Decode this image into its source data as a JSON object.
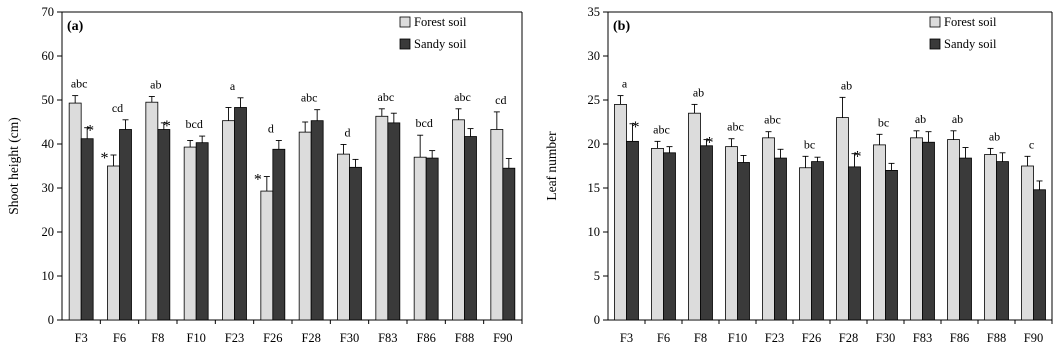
{
  "colors": {
    "forest": "#dcdcdc",
    "sandy": "#3a3a3a",
    "axis": "#000000"
  },
  "chart_data": [
    {
      "type": "bar",
      "panel_label": "(a)",
      "ylabel": "Shoot height (cm)",
      "xlabel": "",
      "ylim": [
        0,
        70
      ],
      "yticks": [
        0,
        10,
        20,
        30,
        40,
        50,
        60,
        70
      ],
      "grid": false,
      "legend_position": "top-right",
      "categories": [
        "F3",
        "F6",
        "F8",
        "F10",
        "F23",
        "F26",
        "F28",
        "F30",
        "F83",
        "F86",
        "F88",
        "F90"
      ],
      "series": [
        {
          "name": "Forest  soil",
          "values": [
            49.3,
            35.0,
            49.5,
            39.3,
            45.3,
            29.3,
            42.7,
            37.7,
            46.3,
            37.0,
            45.5,
            43.3
          ],
          "errors": [
            1.7,
            2.5,
            1.3,
            1.5,
            3.0,
            3.3,
            2.3,
            2.2,
            1.7,
            5.0,
            2.5,
            4.0
          ]
        },
        {
          "name": "Sandy soil",
          "values": [
            41.2,
            43.3,
            43.3,
            40.3,
            48.3,
            38.8,
            45.3,
            34.7,
            44.8,
            36.8,
            41.7,
            34.5
          ],
          "errors": [
            2.5,
            2.2,
            1.5,
            1.5,
            2.2,
            2.0,
            2.5,
            1.8,
            2.2,
            1.7,
            1.8,
            2.2
          ]
        }
      ],
      "sig_letters": [
        "abc",
        "cd",
        "ab",
        "bcd",
        "a",
        "d",
        "abc",
        "d",
        "abc",
        "bcd",
        "abc",
        "cd"
      ],
      "stars": [
        "*",
        "*",
        "*",
        "",
        "",
        "*",
        "",
        "",
        "",
        "",
        "",
        ""
      ]
    },
    {
      "type": "bar",
      "panel_label": "(b)",
      "ylabel": "Leaf number",
      "xlabel": "",
      "ylim": [
        0,
        35
      ],
      "yticks": [
        0,
        5,
        10,
        15,
        20,
        25,
        30,
        35
      ],
      "grid": false,
      "legend_position": "top-right",
      "categories": [
        "F3",
        "F6",
        "F8",
        "F10",
        "F23",
        "F26",
        "F28",
        "F30",
        "F83",
        "F86",
        "F88",
        "F90"
      ],
      "series": [
        {
          "name": "Forest  soil",
          "values": [
            24.5,
            19.5,
            23.5,
            19.7,
            20.7,
            17.3,
            23.0,
            19.9,
            20.7,
            20.5,
            18.8,
            17.5
          ],
          "errors": [
            1.0,
            0.8,
            1.0,
            0.9,
            0.7,
            1.3,
            2.3,
            1.2,
            0.8,
            1.0,
            0.7,
            1.1
          ]
        },
        {
          "name": "Sandy soil",
          "values": [
            20.3,
            19.0,
            19.8,
            17.9,
            18.4,
            18.0,
            17.4,
            17.0,
            20.2,
            18.4,
            18.0,
            14.8
          ],
          "errors": [
            2.0,
            0.7,
            0.7,
            0.8,
            1.0,
            0.5,
            1.5,
            0.8,
            1.2,
            1.2,
            1.0,
            1.0
          ]
        }
      ],
      "sig_letters": [
        "a",
        "abc",
        "ab",
        "abc",
        "abc",
        "bc",
        "ab",
        "bc",
        "ab",
        "ab",
        "ab",
        "c"
      ],
      "stars": [
        "*",
        "",
        "*",
        "",
        "",
        "",
        "*",
        "",
        "",
        "",
        "",
        ""
      ]
    }
  ]
}
